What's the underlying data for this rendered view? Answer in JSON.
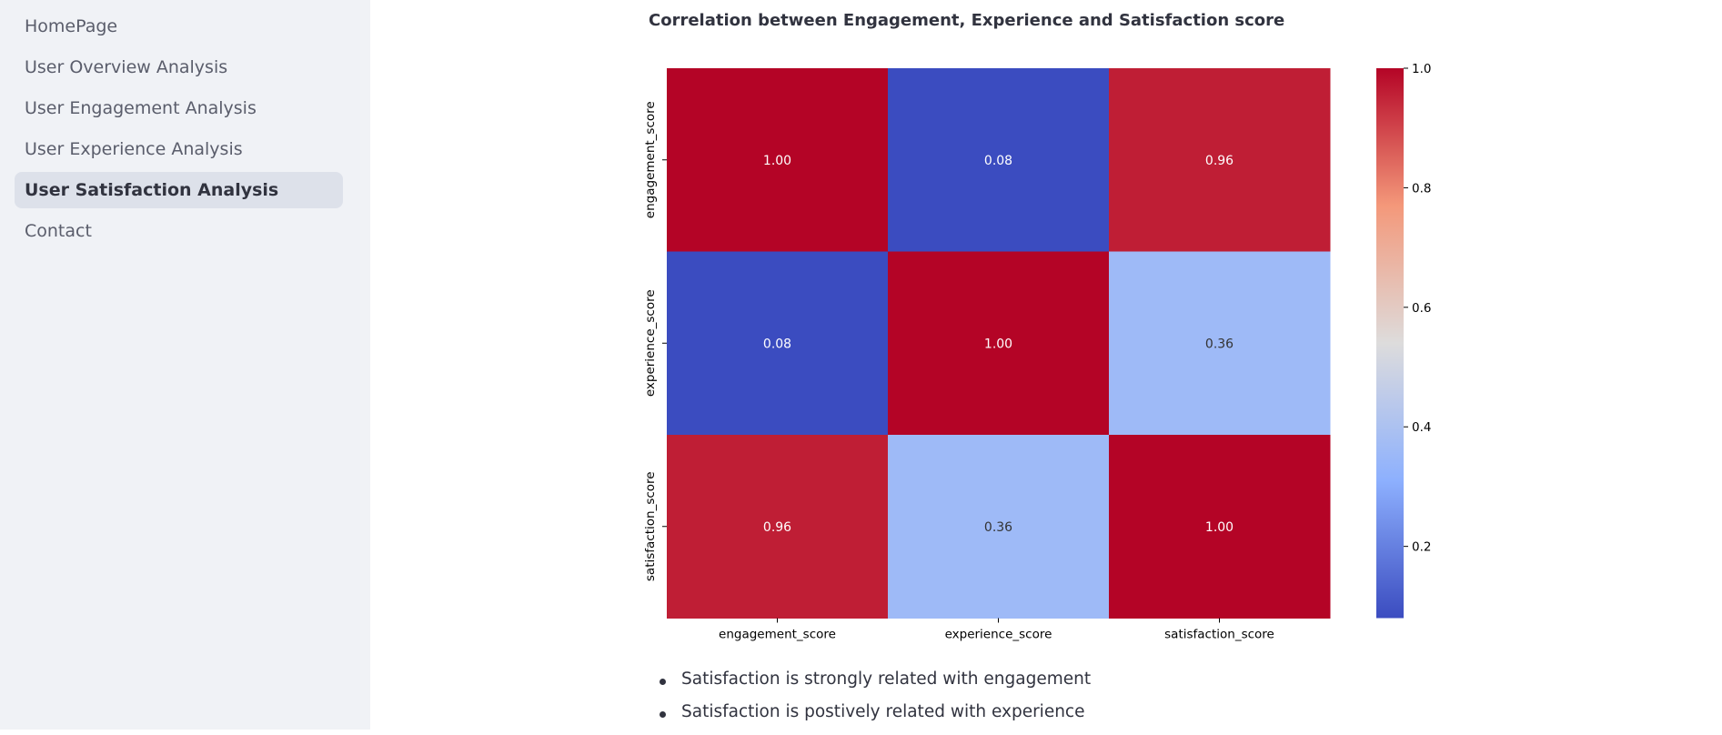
{
  "sidebar": {
    "items": [
      {
        "label": "HomePage",
        "active": false
      },
      {
        "label": "User Overview Analysis",
        "active": false
      },
      {
        "label": "User Engagement Analysis",
        "active": false
      },
      {
        "label": "User Experience Analysis",
        "active": false
      },
      {
        "label": "User Satisfaction Analysis",
        "active": true
      },
      {
        "label": "Contact",
        "active": false
      }
    ]
  },
  "main": {
    "title": "Correlation between Engagement, Experience and Satisfaction score",
    "bullets": [
      "Satisfaction is strongly related with engagement",
      "Satisfaction is postively related with experience"
    ]
  },
  "chart_data": {
    "type": "heatmap",
    "rows": [
      "engagement_score",
      "experience_score",
      "satisfaction_score"
    ],
    "columns": [
      "engagement_score",
      "experience_score",
      "satisfaction_score"
    ],
    "values": [
      [
        1.0,
        0.08,
        0.96
      ],
      [
        0.08,
        1.0,
        0.36
      ],
      [
        0.96,
        0.36,
        1.0
      ]
    ],
    "value_labels": [
      [
        "1.00",
        "0.08",
        "0.96"
      ],
      [
        "0.08",
        "1.00",
        "0.36"
      ],
      [
        "0.96",
        "0.36",
        "1.00"
      ]
    ],
    "colormap": "coolwarm",
    "vmin": 0.08,
    "vmax": 1.0,
    "colorbar_ticks": [
      "0.2",
      "0.4",
      "0.6",
      "0.8",
      "1.0"
    ],
    "colorbar_tick_values": [
      0.2,
      0.4,
      0.6,
      0.8,
      1.0
    ]
  }
}
